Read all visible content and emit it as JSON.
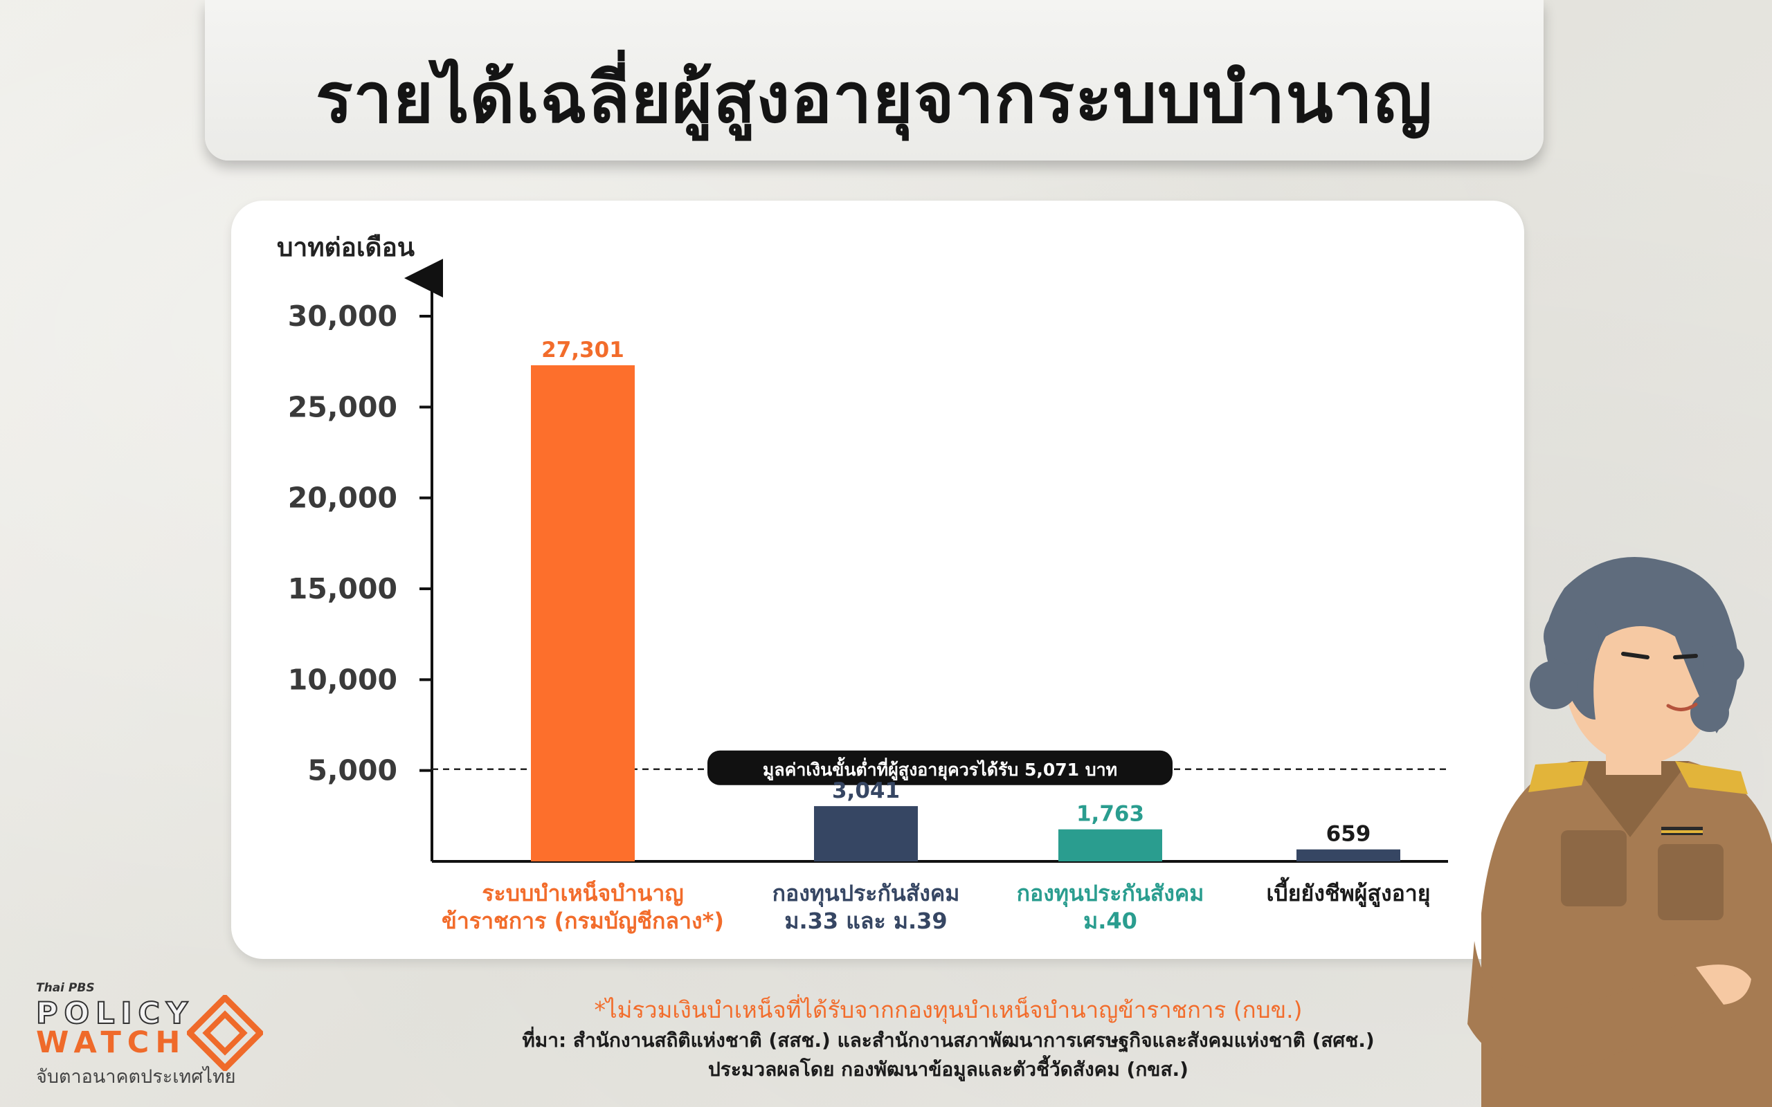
{
  "title": "รายได้เฉลี่ยผู้สูงอายุจากระบบบำนาญ",
  "chart_data": {
    "type": "bar",
    "ylabel": "บาทต่อเดือน",
    "ylim": [
      0,
      30000
    ],
    "yticks": [
      5000,
      10000,
      15000,
      20000,
      25000,
      30000
    ],
    "ytick_labels": [
      "5,000",
      "10,000",
      "15,000",
      "20,000",
      "25,000",
      "30,000"
    ],
    "grid": false,
    "categories": [
      {
        "line1": "ระบบบำเหน็จบำนาญ",
        "line2": "ข้าราชการ (กรมบัญชีกลาง*)"
      },
      {
        "line1": "กองทุนประกันสังคม",
        "line2": "ม.33 และ ม.39"
      },
      {
        "line1": "กองทุนประกันสังคม",
        "line2": "ม.40"
      },
      {
        "line1": "เบี้ยยังชีพผู้สูงอายุ",
        "line2": ""
      }
    ],
    "values": [
      27301,
      3041,
      1763,
      659
    ],
    "value_labels": [
      "27,301",
      "3,041",
      "1,763",
      "659"
    ],
    "bar_colors": [
      "#fd6f2c",
      "#364663",
      "#2a9d8f",
      "#364663"
    ],
    "label_colors": [
      "#f26c2b",
      "#364663",
      "#2a9d8f",
      "#1b1b1b"
    ],
    "value_label_colors": [
      "#f26c2b",
      "#364663",
      "#2a9d8f",
      "#1b1b1b"
    ],
    "reference_line": {
      "value": 5071,
      "label": "มูลค่าเงินขั้นต่ำที่ผู้สูงอายุควรได้รับ",
      "value_label": "5,071 บาท"
    }
  },
  "footer": {
    "note": "*ไม่รวมเงินบำเหน็จที่ได้รับจากกองทุนบำเหน็จบำนาญข้าราชการ (กบข.)",
    "source": "ที่มา: สำนักงานสถิติแห่งชาติ (สสช.) และสำนักงานสภาพัฒนาการเศรษฐกิจและสังคมแห่งชาติ (สศช.)",
    "processed": "ประมวลผลโดย กองพัฒนาข้อมูลและตัวชี้วัดสังคม (กขส.)"
  },
  "logo": {
    "brand": "Thai PBS",
    "line1": "POLICY",
    "line2": "WATCH",
    "tagline": "จับตาอนาคตประเทศไทย"
  },
  "colors": {
    "accent": "#f26c2b",
    "navy": "#364663",
    "teal": "#2a9d8f",
    "background": "#e9e8e3"
  }
}
